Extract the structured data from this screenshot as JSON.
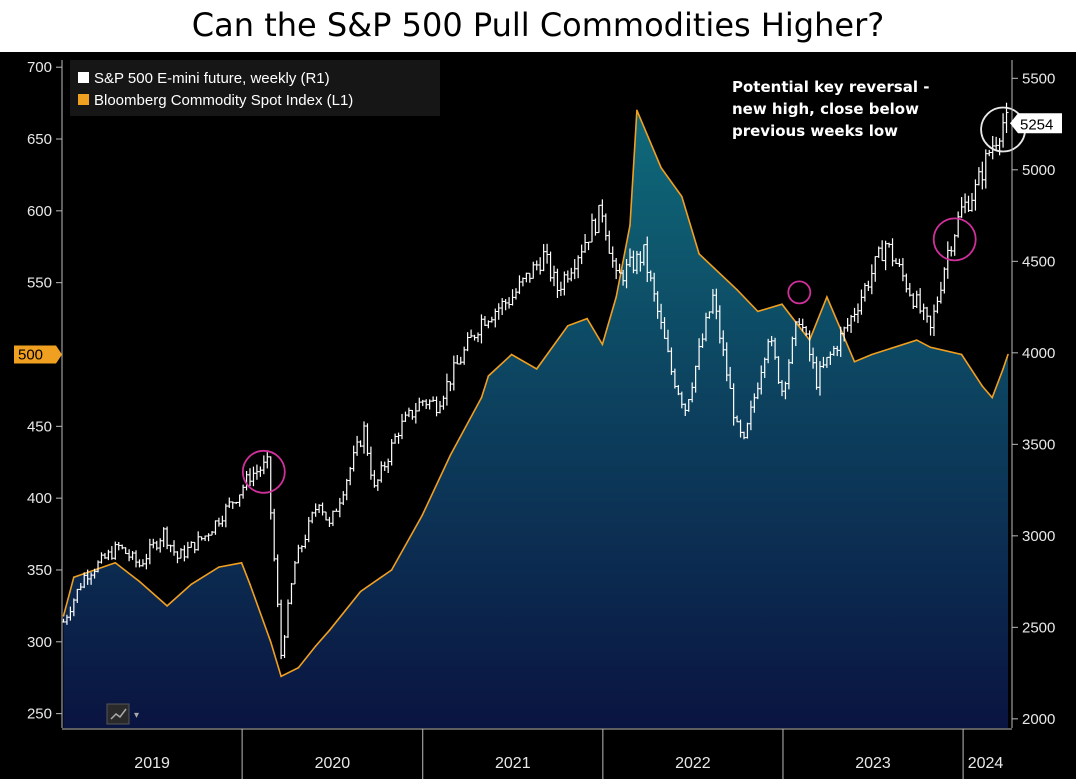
{
  "title": "Can the S&P 500 Pull Commodities Higher?",
  "colors": {
    "background": "#000000",
    "commodity_line": "#f0a020",
    "commodity_fill_top": "#0f6a7a",
    "commodity_fill_bottom": "#0a1440",
    "spx_bars": "#ffffff",
    "highlight_circle": "#d0309a",
    "latest_circle": "#e8e8e8",
    "axis_text": "#e8e8e8",
    "left_marker": "#f0a020"
  },
  "chart_data": {
    "type": "line",
    "title": "Can the S&P 500 Pull Commodities Higher?",
    "x_axis": {
      "type": "date",
      "range": [
        "2019-01-01",
        "2024-04-01"
      ],
      "year_labels": [
        "2019",
        "2020",
        "2021",
        "2022",
        "2023",
        "2024"
      ]
    },
    "left_axis": {
      "range": [
        240,
        705
      ],
      "ticks": [
        250,
        300,
        350,
        400,
        450,
        500,
        550,
        600,
        650,
        700
      ],
      "highlighted_label": "500"
    },
    "right_axis": {
      "range": [
        1950,
        5600
      ],
      "ticks": [
        2000,
        2500,
        3000,
        3500,
        4000,
        4500,
        5000,
        5500
      ],
      "last_value_label": "5254"
    },
    "legend_position": "top-left",
    "series": [
      {
        "name": "S&P 500 E-mini future, weekly  (R1)",
        "axis": "right",
        "style": "ohlc-bars",
        "x": [
          "2019-01-04",
          "2019-02-15",
          "2019-04-26",
          "2019-06-07",
          "2019-07-26",
          "2019-08-23",
          "2019-10-18",
          "2019-12-27",
          "2020-01-17",
          "2020-02-21",
          "2020-03-20",
          "2020-04-17",
          "2020-06-05",
          "2020-06-26",
          "2020-09-04",
          "2020-09-25",
          "2020-11-13",
          "2020-12-31",
          "2021-01-29",
          "2021-04-30",
          "2021-06-30",
          "2021-09-03",
          "2021-10-01",
          "2021-12-31",
          "2022-01-28",
          "2022-03-25",
          "2022-05-20",
          "2022-06-17",
          "2022-08-12",
          "2022-09-30",
          "2022-10-14",
          "2022-12-02",
          "2022-12-30",
          "2023-02-03",
          "2023-03-10",
          "2023-05-12",
          "2023-07-28",
          "2023-10-27",
          "2023-11-30",
          "2023-12-29",
          "2024-01-26",
          "2024-02-23",
          "2024-03-22",
          "2024-04-01"
        ],
        "values": [
          2530,
          2780,
          2940,
          2840,
          3020,
          2880,
          3000,
          3240,
          3330,
          3390,
          2350,
          2850,
          3200,
          3050,
          3580,
          3250,
          3580,
          3740,
          3720,
          4180,
          4300,
          4530,
          4350,
          4780,
          4400,
          4540,
          3900,
          3700,
          4300,
          3580,
          3500,
          4100,
          3800,
          4200,
          3850,
          4150,
          4600,
          4120,
          4550,
          4780,
          4890,
          5100,
          5260,
          5254
        ]
      },
      {
        "name": "Bloomberg Commodity Spot Index (L1)",
        "axis": "left",
        "style": "area",
        "x": [
          "2019-01-04",
          "2019-01-25",
          "2019-04-19",
          "2019-06-07",
          "2019-08-02",
          "2019-09-20",
          "2019-11-15",
          "2019-12-31",
          "2020-01-17",
          "2020-02-28",
          "2020-03-20",
          "2020-04-24",
          "2020-05-29",
          "2020-06-26",
          "2020-08-28",
          "2020-10-30",
          "2020-12-31",
          "2021-02-26",
          "2021-04-30",
          "2021-05-14",
          "2021-06-30",
          "2021-08-20",
          "2021-10-22",
          "2021-11-30",
          "2021-12-31",
          "2022-01-28",
          "2022-02-25",
          "2022-03-11",
          "2022-04-29",
          "2022-06-10",
          "2022-07-15",
          "2022-09-30",
          "2022-11-11",
          "2022-12-30",
          "2023-02-24",
          "2023-03-31",
          "2023-05-26",
          "2023-06-30",
          "2023-09-29",
          "2023-10-27",
          "2023-12-29",
          "2024-02-09",
          "2024-02-29",
          "2024-03-22",
          "2024-04-01"
        ],
        "values": [
          318,
          345,
          355,
          342,
          325,
          340,
          352,
          355,
          340,
          300,
          276,
          282,
          297,
          308,
          335,
          350,
          388,
          430,
          470,
          485,
          500,
          490,
          520,
          525,
          507,
          540,
          590,
          670,
          630,
          610,
          570,
          545,
          530,
          535,
          510,
          540,
          495,
          500,
          510,
          505,
          500,
          478,
          470,
          490,
          500
        ]
      }
    ],
    "annotations": [
      {
        "text_lines": [
          "Potential key reversal -",
          "new high, close below",
          "previous weeks low"
        ]
      }
    ]
  }
}
